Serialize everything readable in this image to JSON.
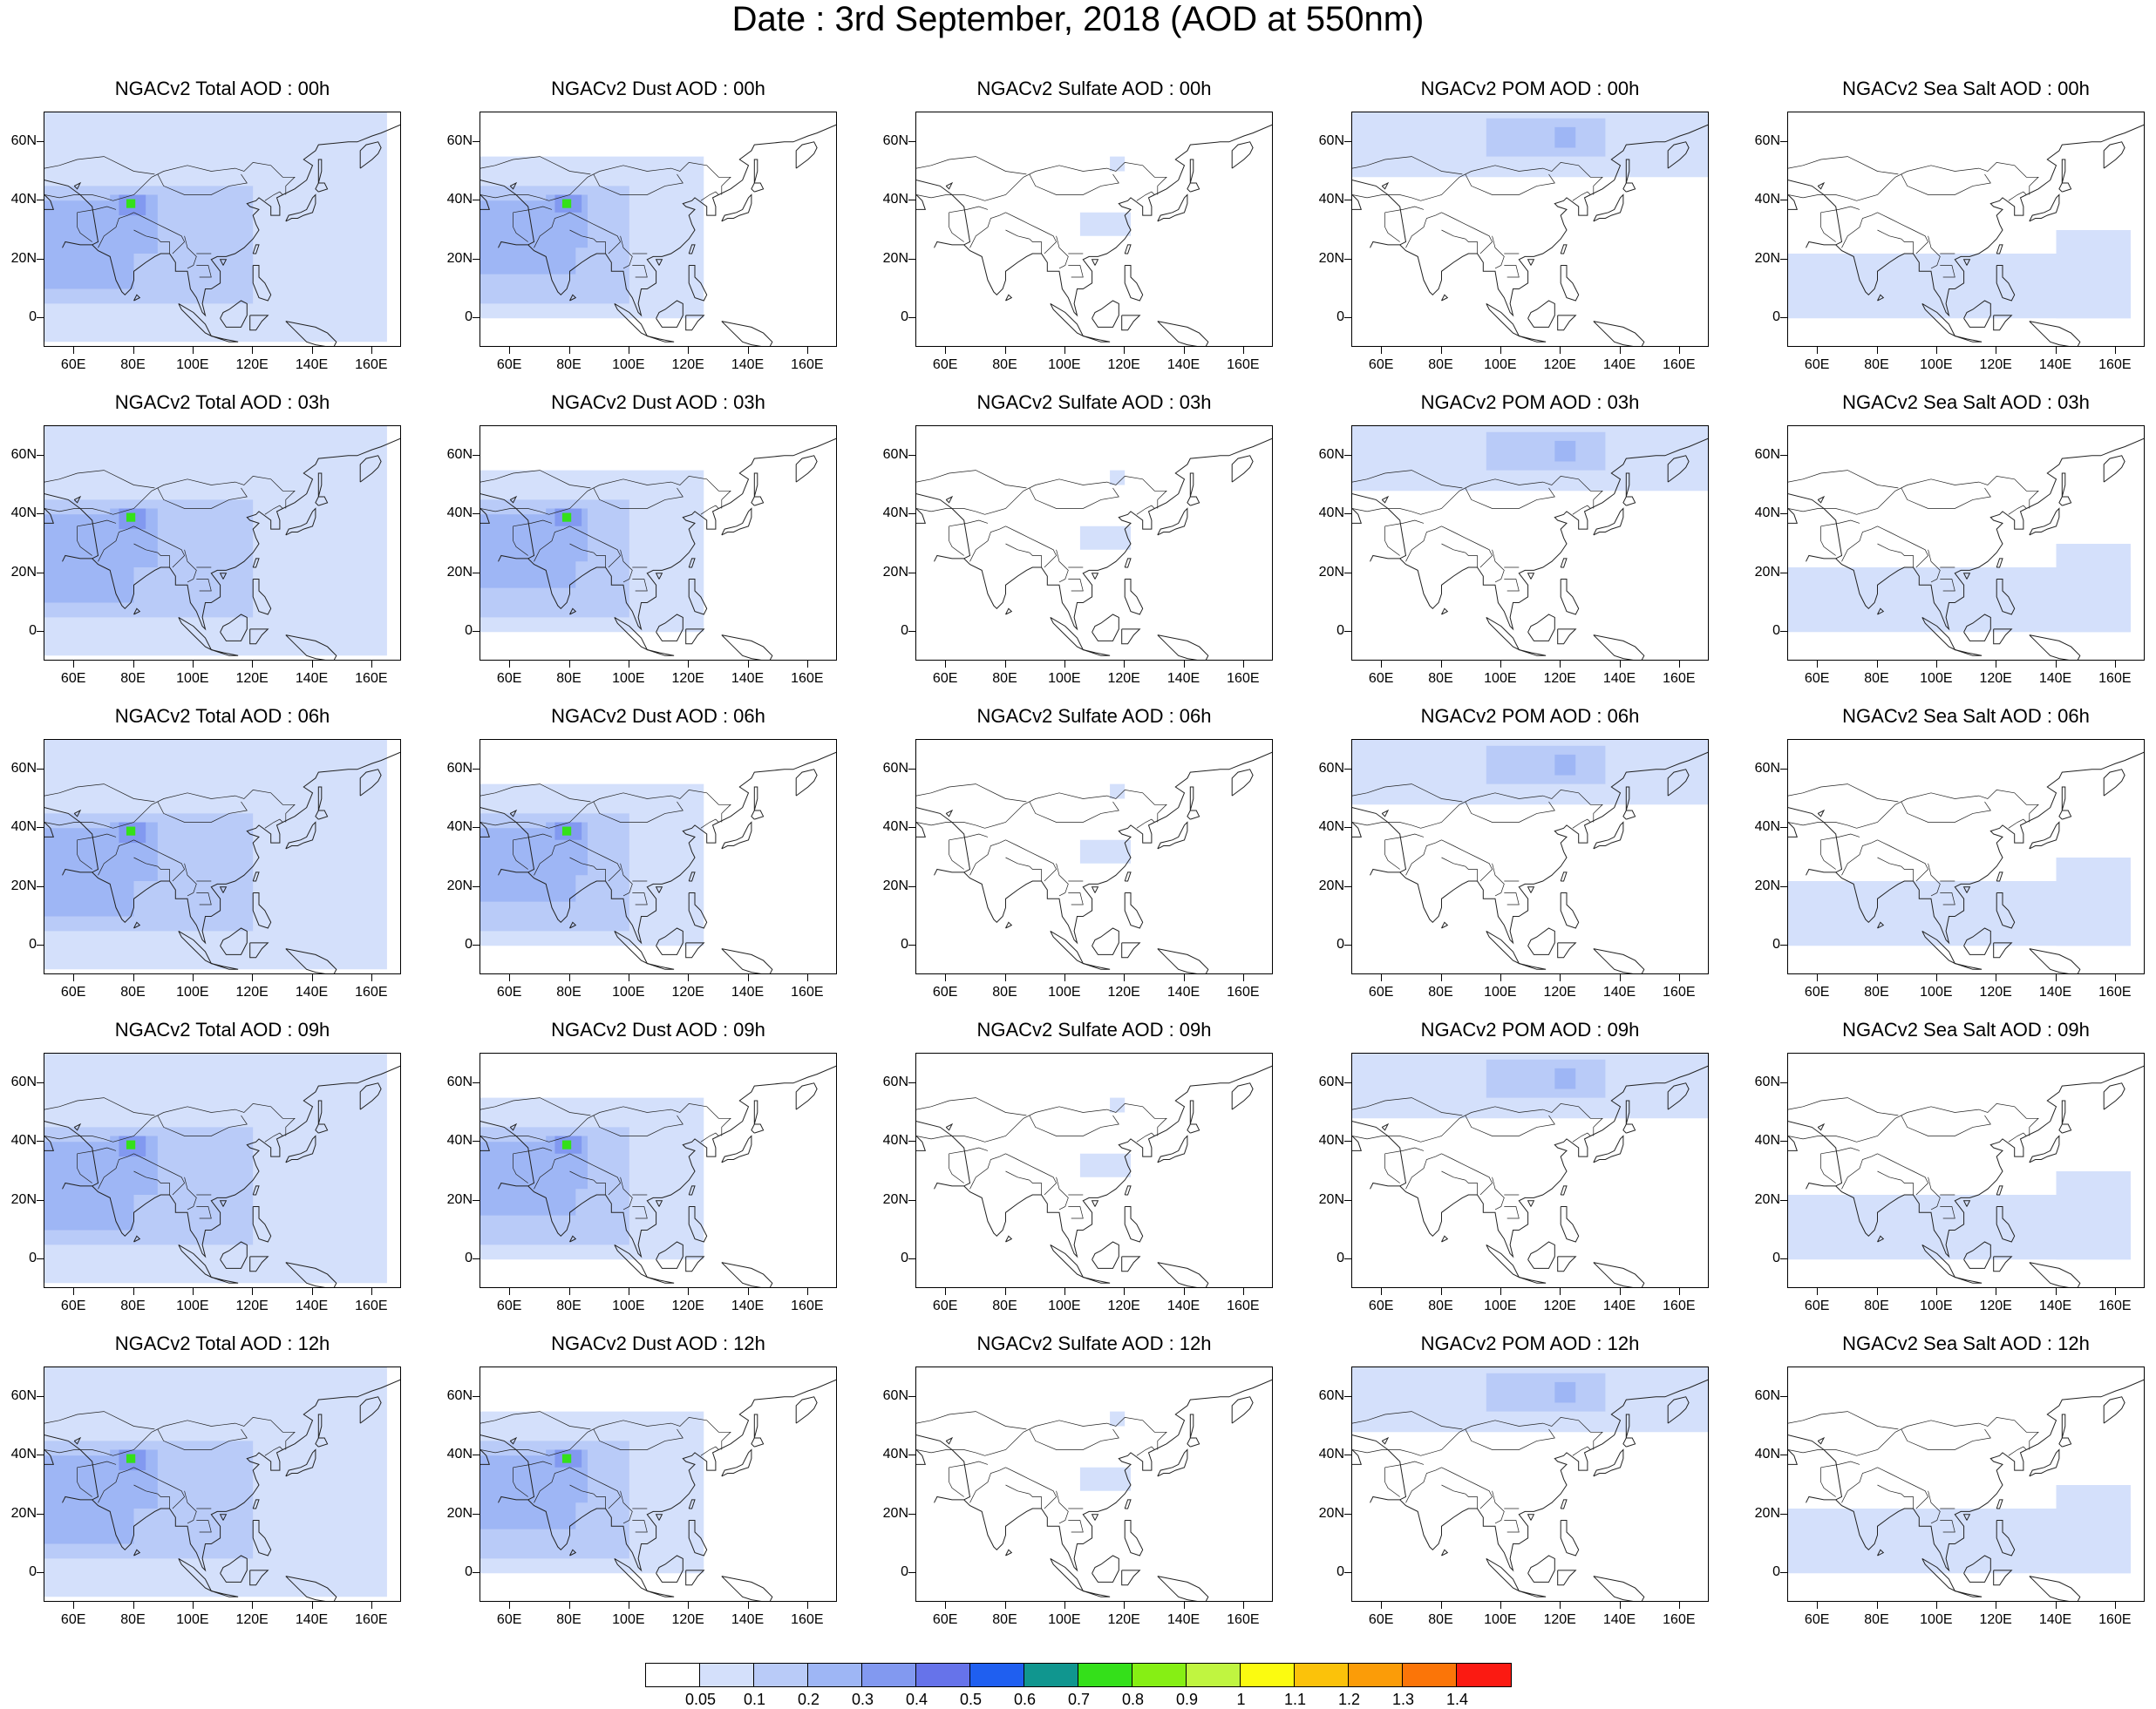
{
  "title": "Date : 3rd September, 2018 (AOD at 550nm)",
  "map": {
    "lat_range": [
      -10,
      70
    ],
    "lon_range": [
      50,
      170
    ],
    "lat_ticks": [
      "60N",
      "40N",
      "20N",
      "0"
    ],
    "lon_ticks": [
      "60E",
      "80E",
      "100E",
      "120E",
      "140E",
      "160E"
    ]
  },
  "species": [
    "Total",
    "Dust",
    "Sulfate",
    "POM",
    "Sea Salt"
  ],
  "forecast_hours": [
    "00h",
    "03h",
    "06h",
    "09h",
    "12h"
  ],
  "panel_titles": [
    [
      "NGACv2 Total AOD : 00h",
      "NGACv2 Dust AOD : 00h",
      "NGACv2 Sulfate AOD : 00h",
      "NGACv2 POM AOD : 00h",
      "NGACv2 Sea Salt AOD : 00h"
    ],
    [
      "NGACv2 Total AOD : 03h",
      "NGACv2 Dust AOD : 03h",
      "NGACv2 Sulfate AOD : 03h",
      "NGACv2 POM AOD : 03h",
      "NGACv2 Sea Salt AOD : 03h"
    ],
    [
      "NGACv2 Total AOD : 06h",
      "NGACv2 Dust AOD : 06h",
      "NGACv2 Sulfate AOD : 06h",
      "NGACv2 POM AOD : 06h",
      "NGACv2 Sea Salt AOD : 06h"
    ],
    [
      "NGACv2 Total AOD : 09h",
      "NGACv2 Dust AOD : 09h",
      "NGACv2 Sulfate AOD : 09h",
      "NGACv2 POM AOD : 09h",
      "NGACv2 Sea Salt  AOD : 09h"
    ],
    [
      "NGACv2 Total AOD  : 12h",
      "NGACv2 Dust AOD : 12h",
      "NGACv2 Sulfate AOD : 12h",
      "NGACv2 POM  AOD : 12h",
      "NGACv2 Sea Salt  AOD : 12h"
    ]
  ],
  "colorbar": {
    "labels": [
      "0.05",
      "0.1",
      "0.2",
      "0.3",
      "0.4",
      "0.5",
      "0.6",
      "0.7",
      "0.8",
      "0.9",
      "1",
      "1.1",
      "1.2",
      "1.3",
      "1.4"
    ],
    "colors": [
      "#ffffff",
      "#d4e0fb",
      "#b9cbf8",
      "#9eb6f5",
      "#8299f0",
      "#6673ea",
      "#1f5ff0",
      "#10968f",
      "#34e01a",
      "#86ef14",
      "#c0f540",
      "#fbfb10",
      "#fbc20a",
      "#fb9c08",
      "#fb7508",
      "#fb1a12"
    ]
  },
  "aod_fields": {
    "Total": [
      {
        "lon": [
          50,
          165
        ],
        "lat": [
          -8,
          70
        ],
        "level": 1
      },
      {
        "lon": [
          50,
          120
        ],
        "lat": [
          5,
          45
        ],
        "level": 2
      },
      {
        "lon": [
          50,
          80
        ],
        "lat": [
          10,
          40
        ],
        "level": 3
      },
      {
        "lon": [
          72,
          88
        ],
        "lat": [
          22,
          42
        ],
        "level": 3
      },
      {
        "lon": [
          75,
          84
        ],
        "lat": [
          35,
          42
        ],
        "level": 4
      },
      {
        "lon": [
          77.5,
          80.5
        ],
        "lat": [
          37.5,
          40.5
        ],
        "level": 8
      }
    ],
    "Dust": [
      {
        "lon": [
          50,
          125
        ],
        "lat": [
          0,
          55
        ],
        "level": 1
      },
      {
        "lon": [
          50,
          100
        ],
        "lat": [
          5,
          45
        ],
        "level": 2
      },
      {
        "lon": [
          50,
          82
        ],
        "lat": [
          15,
          40
        ],
        "level": 3
      },
      {
        "lon": [
          72,
          86
        ],
        "lat": [
          24,
          42
        ],
        "level": 3
      },
      {
        "lon": [
          75,
          84
        ],
        "lat": [
          36,
          42
        ],
        "level": 4
      },
      {
        "lon": [
          77.5,
          80.5
        ],
        "lat": [
          37.5,
          40.5
        ],
        "level": 8
      }
    ],
    "Sulfate": [
      {
        "lon": [
          105,
          122
        ],
        "lat": [
          28,
          36
        ],
        "level": 1
      },
      {
        "lon": [
          115,
          120
        ],
        "lat": [
          50,
          55
        ],
        "level": 1
      }
    ],
    "POM": [
      {
        "lon": [
          50,
          170
        ],
        "lat": [
          48,
          70
        ],
        "level": 1
      },
      {
        "lon": [
          95,
          135
        ],
        "lat": [
          55,
          68
        ],
        "level": 2
      },
      {
        "lon": [
          118,
          125
        ],
        "lat": [
          58,
          65
        ],
        "level": 3
      }
    ],
    "Sea Salt": [
      {
        "lon": [
          50,
          165
        ],
        "lat": [
          0,
          22
        ],
        "level": 1
      },
      {
        "lon": [
          140,
          165
        ],
        "lat": [
          0,
          30
        ],
        "level": 1
      }
    ]
  }
}
